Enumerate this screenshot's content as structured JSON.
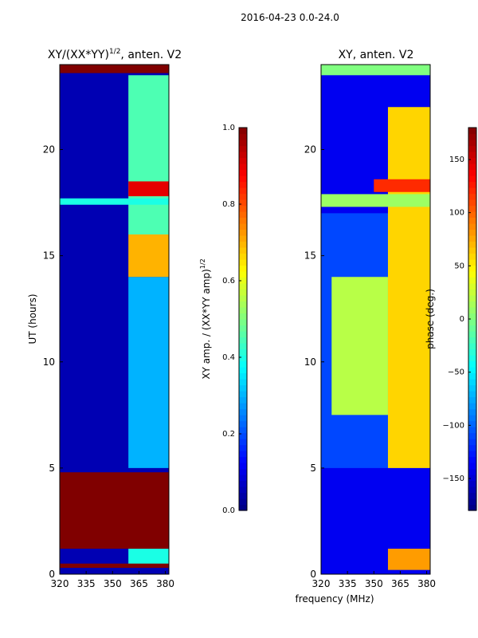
{
  "figure_title": "2016-04-23 0.0-24.0",
  "colors": {
    "jet_dark_blue": "#00008f",
    "jet_blue": "#0000ff",
    "jet_cyan": "#00ffff",
    "jet_yellow": "#ffff00",
    "jet_red": "#ff0000",
    "jet_dark_red": "#800000"
  },
  "chart_data": [
    {
      "type": "heatmap",
      "title_main": "XY/(XX*YY)",
      "title_exp": "1/2",
      "title_rest": ", anten. V2",
      "ylabel": "UT (hours)",
      "xlabel": "",
      "xlim": [
        320,
        382
      ],
      "ylim": [
        0,
        24
      ],
      "x_ticks": [
        320,
        335,
        350,
        365,
        380
      ],
      "y_ticks": [
        0,
        5,
        10,
        15,
        20
      ],
      "colorbar": {
        "label_main": "XY amp. / (XX*YY amp)",
        "label_exp": "1/2",
        "range": [
          0.0,
          1.0
        ],
        "ticks": [
          "0.0",
          "0.2",
          "0.4",
          "0.6",
          "0.8",
          "1.0"
        ],
        "tick_values": [
          0.0,
          0.2,
          0.4,
          0.6,
          0.8,
          1.0
        ]
      },
      "regions": [
        {
          "x0": 320,
          "x1": 382,
          "y0": 0,
          "y1": 24,
          "value": 0.05
        },
        {
          "x0": 359,
          "x1": 382,
          "y0": 5.0,
          "y1": 14.0,
          "value": 0.3
        },
        {
          "x0": 359,
          "x1": 382,
          "y0": 14.0,
          "y1": 16.0,
          "value": 0.7
        },
        {
          "x0": 359,
          "x1": 382,
          "y0": 16.0,
          "y1": 23.5,
          "value": 0.45
        },
        {
          "x0": 359,
          "x1": 382,
          "y0": 17.8,
          "y1": 18.5,
          "value": 0.9
        },
        {
          "x0": 359,
          "x1": 382,
          "y0": 0.3,
          "y1": 1.2,
          "value": 0.4
        },
        {
          "x0": 320,
          "x1": 382,
          "y0": 17.4,
          "y1": 17.7,
          "value": 0.4
        },
        {
          "x0": 320,
          "x1": 382,
          "y0": 1.2,
          "y1": 4.8,
          "value": 1.0
        },
        {
          "x0": 320,
          "x1": 382,
          "y0": 0.3,
          "y1": 0.5,
          "value": 1.0
        },
        {
          "x0": 320,
          "x1": 382,
          "y0": 23.6,
          "y1": 24.0,
          "value": 1.0
        }
      ]
    },
    {
      "type": "heatmap",
      "title_main": "XY, anten. V2",
      "ylabel": "",
      "xlabel": "frequency (MHz)",
      "xlim": [
        320,
        382
      ],
      "ylim": [
        0,
        24
      ],
      "x_ticks": [
        320,
        335,
        350,
        365,
        380
      ],
      "y_ticks": [
        0,
        5,
        10,
        15,
        20
      ],
      "colorbar": {
        "label_main": "phase (deg.)",
        "range": [
          -180,
          180
        ],
        "ticks": [
          "−150",
          "−100",
          "−50",
          "0",
          "50",
          "100",
          "150"
        ],
        "tick_values": [
          -150,
          -100,
          -50,
          0,
          50,
          100,
          150
        ]
      },
      "regions": [
        {
          "x0": 320,
          "x1": 382,
          "y0": 0,
          "y1": 24,
          "value": -140
        },
        {
          "x0": 320,
          "x1": 382,
          "y0": 5.0,
          "y1": 17.0,
          "value": -110
        },
        {
          "x0": 326,
          "x1": 358,
          "y0": 7.5,
          "y1": 14.0,
          "value": 20
        },
        {
          "x0": 358,
          "x1": 382,
          "y0": 5.0,
          "y1": 22.0,
          "value": 60
        },
        {
          "x0": 320,
          "x1": 382,
          "y0": 17.3,
          "y1": 17.9,
          "value": 10
        },
        {
          "x0": 350,
          "x1": 382,
          "y0": 18.0,
          "y1": 18.6,
          "value": 120
        },
        {
          "x0": 320,
          "x1": 382,
          "y0": 23.5,
          "y1": 24.0,
          "value": 0
        },
        {
          "x0": 358,
          "x1": 382,
          "y0": 0.2,
          "y1": 1.2,
          "value": 80
        }
      ]
    }
  ]
}
